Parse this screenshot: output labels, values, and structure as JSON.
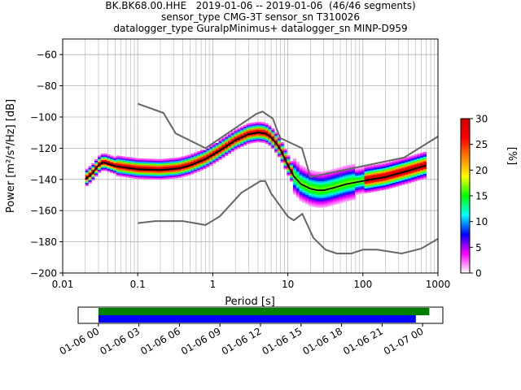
{
  "title_lines": [
    "BK.BK68.00.HHE   2019-01-06 -- 2019-01-06  (46/46 segments)",
    "sensor_type CMG-3T sensor_sn T310026",
    "datalogger_type GuralpMinimus+ datalogger_sn MINP-D959"
  ],
  "chart_data": [
    {
      "type": "heatmap",
      "description_kind": "probabilistic power spectral density",
      "xlabel": "Period [s]",
      "ylabel": "Power [m²/s⁴/Hz] [dB]",
      "x_scale": "log",
      "xlim": [
        0.01,
        1000
      ],
      "ylim": [
        -200,
        -50
      ],
      "x_ticks": [
        0.01,
        0.1,
        1,
        10,
        100,
        1000
      ],
      "x_tick_labels": [
        "0.01",
        "0.1",
        "1",
        "10",
        "100",
        "1000"
      ],
      "y_ticks": [
        -200,
        -180,
        -160,
        -140,
        -120,
        -100,
        -80,
        -60
      ],
      "y_tick_labels": [
        "−200",
        "−180",
        "−160",
        "−140",
        "−120",
        "−100",
        "−80",
        "−60"
      ],
      "grid": true,
      "colorbar": {
        "label": "[%]",
        "range": [
          0,
          30
        ],
        "ticks": [
          0,
          5,
          10,
          15,
          20,
          25,
          30
        ],
        "colormap": [
          "#ffffff",
          "#ff00ff",
          "#0000ff",
          "#00ffff",
          "#00ff00",
          "#ffff00",
          "#ff8000",
          "#ff0000",
          "#cc0000"
        ]
      },
      "noise_model_high": {
        "x": [
          0.1,
          0.22,
          0.32,
          0.8,
          3.8,
          4.6,
          6.3,
          7.9,
          15.4,
          20,
          354.8,
          1000
        ],
        "y": [
          -91.5,
          -97.4,
          -110.5,
          -120,
          -98,
          -96.5,
          -101,
          -113.5,
          -120,
          -138.5,
          -126,
          -112.5
        ]
      },
      "noise_model_low": {
        "x": [
          0.1,
          0.17,
          0.4,
          0.8,
          1.24,
          2.4,
          4.3,
          5,
          6,
          10,
          12,
          15.6,
          21.9,
          31.6,
          45,
          70,
          101,
          154,
          328,
          600,
          1000
        ],
        "y": [
          -168,
          -166.7,
          -166.7,
          -169.2,
          -163.7,
          -148.6,
          -141.1,
          -141.1,
          -149,
          -163.8,
          -166.2,
          -162.1,
          -177.5,
          -185,
          -187.5,
          -187.5,
          -185,
          -185,
          -187.5,
          -184.4,
          -178
        ]
      },
      "mode_curve": {
        "x": [
          0.02,
          0.025,
          0.03,
          0.035,
          0.05,
          0.07,
          0.1,
          0.2,
          0.35,
          0.5,
          0.8,
          1.2,
          2,
          3,
          4,
          5,
          6,
          7,
          8,
          10,
          12,
          15,
          20,
          25,
          30,
          40,
          60,
          100,
          200,
          400,
          700
        ],
        "y": [
          -140,
          -136,
          -131,
          -129,
          -131.5,
          -132.5,
          -133.5,
          -134,
          -133,
          -131,
          -127,
          -122,
          -115,
          -111,
          -110,
          -110.5,
          -113,
          -117,
          -121,
          -131,
          -138,
          -143,
          -146,
          -147,
          -147,
          -145.5,
          -143,
          -141,
          -138.5,
          -134.5,
          -131
        ]
      }
    },
    {
      "type": "timeline",
      "description_kind": "data coverage",
      "xlim": [
        "2019-01-05T22:30",
        "2019-01-07T01:30"
      ],
      "x_tick_labels": [
        "01-06 00",
        "01-06 03",
        "01-06 06",
        "01-06 09",
        "01-06 12",
        "01-06 15",
        "01-06 18",
        "01-06 21",
        "01-07 00"
      ],
      "bars": [
        {
          "color": "#008000",
          "start": "2019-01-06T00:00",
          "end": "2019-01-07T00:30"
        },
        {
          "color": "#0000ff",
          "start": "2019-01-06T00:00",
          "end": "2019-01-06T23:30"
        }
      ]
    }
  ]
}
